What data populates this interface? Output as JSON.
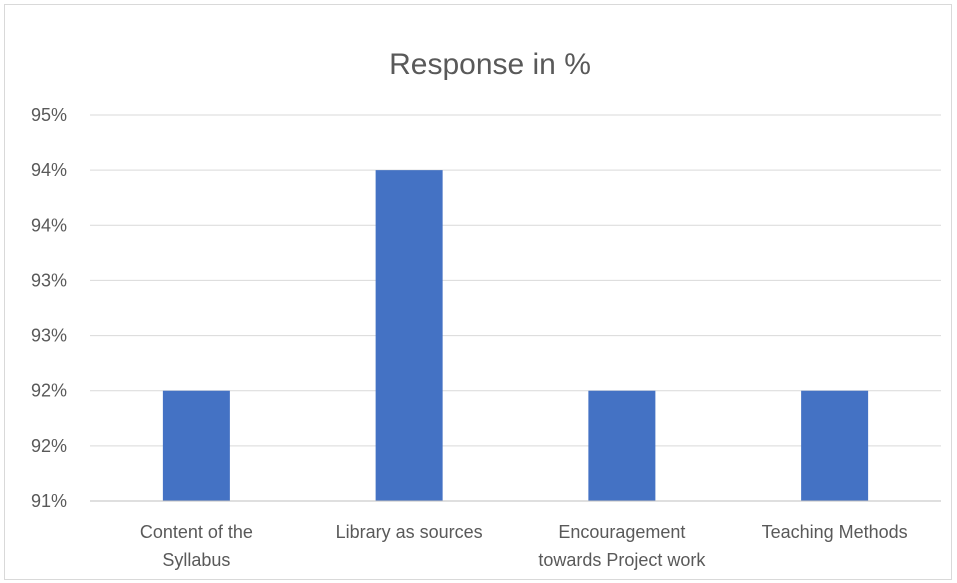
{
  "chart_data": {
    "type": "bar",
    "title": "Response in %",
    "categories": [
      [
        "Content of the",
        "Syllabus"
      ],
      [
        "Library as sources"
      ],
      [
        "Encouragement",
        "towards Project work"
      ],
      [
        "Teaching Methods"
      ]
    ],
    "values": [
      92,
      94,
      92,
      92
    ],
    "y_ticks": [
      "91%",
      "92%",
      "92%",
      "93%",
      "93%",
      "94%",
      "94%",
      "95%"
    ],
    "ylim": [
      91,
      94.5
    ],
    "xlabel": "",
    "ylabel": "",
    "grid": true,
    "legend": "none",
    "colors": {
      "bar": "#4472c4",
      "grid": "#d9d9d9",
      "axis": "#bfbfbf",
      "text": "#595959"
    }
  }
}
